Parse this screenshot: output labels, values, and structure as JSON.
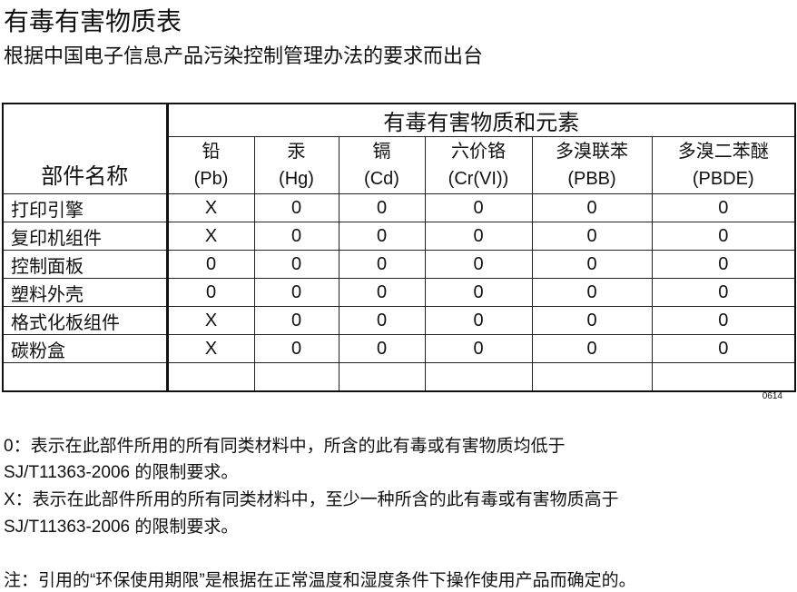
{
  "title": "有毒有害物质表",
  "subtitle": "根据中国电子信息产品污染控制管理办法的要求而出台",
  "table": {
    "group_header": "有毒有害物质和元素",
    "part_header": "部件名称",
    "columns": [
      {
        "name": "铅",
        "symbol": "(Pb)"
      },
      {
        "name": "汞",
        "symbol": "(Hg)"
      },
      {
        "name": "镉",
        "symbol": "(Cd)"
      },
      {
        "name": "六价铬",
        "symbol": "(Cr(VI))"
      },
      {
        "name": "多溴联苯",
        "symbol": "(PBB)"
      },
      {
        "name": "多溴二苯醚",
        "symbol": "(PBDE)"
      }
    ],
    "rows": [
      {
        "part": "打印引擎",
        "values": [
          "X",
          "0",
          "0",
          "0",
          "0",
          "0"
        ]
      },
      {
        "part": "复印机组件",
        "values": [
          "X",
          "0",
          "0",
          "0",
          "0",
          "0"
        ]
      },
      {
        "part": "控制面板",
        "values": [
          "0",
          "0",
          "0",
          "0",
          "0",
          "0"
        ]
      },
      {
        "part": "塑料外壳",
        "values": [
          "0",
          "0",
          "0",
          "0",
          "0",
          "0"
        ]
      },
      {
        "part": "格式化板组件",
        "values": [
          "X",
          "0",
          "0",
          "0",
          "0",
          "0"
        ]
      },
      {
        "part": "碳粉盒",
        "values": [
          "X",
          "0",
          "0",
          "0",
          "0",
          "0"
        ]
      }
    ]
  },
  "code": "0614",
  "notes": [
    "0：表示在此部件所用的所有同类材料中，所含的此有毒或有害物质均低于",
    "SJ/T11363-2006 的限制要求。",
    "X：表示在此部件所用的所有同类材料中，至少一种所含的此有毒或有害物质高于",
    "SJ/T11363-2006 的限制要求。",
    "注：引用的“环保使用期限”是根据在正常温度和湿度条件下操作使用产品而确定的。"
  ]
}
